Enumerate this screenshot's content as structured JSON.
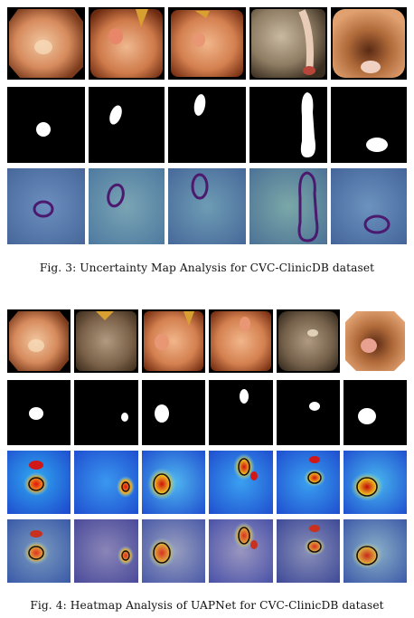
{
  "figure3": {
    "caption": "Fig. 3: Uncertainty Map Analysis for CVC-ClinicDB dataset",
    "rows": [
      "colonoscopy-image",
      "ground-truth-mask",
      "uncertainty-map"
    ],
    "columns": 5
  },
  "figure4": {
    "caption": "Fig. 4: Heatmap Analysis of UAPNet for CVC-ClinicDB dataset",
    "rows": [
      "colonoscopy-image",
      "ground-truth-mask",
      "heatmap",
      "heatmap-overlay"
    ],
    "columns": 6
  },
  "colors": {
    "uncertainty_background": "#5a7fb0",
    "uncertainty_contour": "#4b1a6e",
    "heatmap_cold": "#1f6fe0",
    "heatmap_hot": "#e01010",
    "mask_foreground": "#ffffff",
    "mask_background": "#000000"
  }
}
